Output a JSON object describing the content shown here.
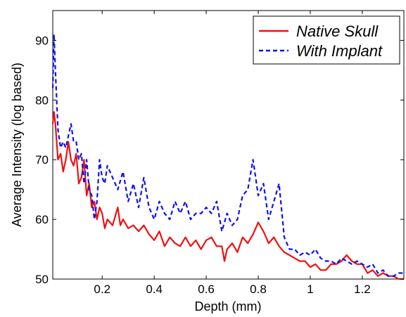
{
  "chart_data": {
    "type": "line",
    "title": "",
    "xlabel": "Depth (mm)",
    "ylabel": "Average Intensity (log based)",
    "xlim": [
      0.01,
      1.36
    ],
    "ylim": [
      50,
      95
    ],
    "xticks": [
      0.2,
      0.4,
      0.6,
      0.8,
      1,
      1.2
    ],
    "xtick_labels": [
      "0.2",
      "0.4",
      "0.6",
      "0.8",
      "1",
      "1.2"
    ],
    "yticks": [
      50,
      60,
      70,
      80,
      90
    ],
    "ytick_labels": [
      "50",
      "60",
      "70",
      "80",
      "90"
    ],
    "grid": false,
    "legend_position": "top-right",
    "colors": {
      "native": "#ee1111",
      "implant": "#1111ee",
      "axis": "#000000"
    },
    "series": [
      {
        "name": "Native Skull",
        "style": "solid",
        "x": [
          0.01,
          0.015,
          0.02,
          0.03,
          0.04,
          0.05,
          0.06,
          0.07,
          0.08,
          0.09,
          0.1,
          0.11,
          0.12,
          0.13,
          0.14,
          0.15,
          0.16,
          0.17,
          0.18,
          0.19,
          0.2,
          0.21,
          0.22,
          0.24,
          0.26,
          0.27,
          0.28,
          0.3,
          0.32,
          0.34,
          0.36,
          0.38,
          0.4,
          0.42,
          0.44,
          0.46,
          0.48,
          0.5,
          0.52,
          0.54,
          0.56,
          0.58,
          0.6,
          0.62,
          0.64,
          0.66,
          0.67,
          0.68,
          0.7,
          0.72,
          0.74,
          0.76,
          0.78,
          0.8,
          0.82,
          0.84,
          0.86,
          0.88,
          0.9,
          0.92,
          0.94,
          0.96,
          0.98,
          1.0,
          1.02,
          1.04,
          1.06,
          1.08,
          1.1,
          1.12,
          1.14,
          1.16,
          1.18,
          1.2,
          1.22,
          1.24,
          1.26,
          1.28,
          1.3,
          1.32,
          1.34,
          1.36
        ],
        "y": [
          76,
          78,
          76,
          70,
          71,
          68,
          70,
          73,
          70,
          69,
          71,
          66,
          67,
          70,
          64,
          66,
          62,
          63,
          60,
          62,
          61,
          58.5,
          60,
          59,
          62,
          59,
          60,
          58.5,
          59,
          58,
          59,
          57.5,
          56.5,
          58,
          55.5,
          57,
          56,
          55.5,
          57,
          55.5,
          56.5,
          55,
          56.5,
          57,
          55.5,
          55.5,
          53,
          55,
          56,
          54.5,
          57,
          56,
          57.5,
          59.5,
          58,
          56,
          57,
          55.5,
          54.5,
          54,
          53.5,
          53,
          53,
          52,
          52.5,
          51.5,
          51.5,
          52.5,
          52.5,
          53,
          54,
          53,
          52.5,
          52.5,
          51,
          51.5,
          50.5,
          51,
          50.5,
          50.5,
          50,
          50
        ]
      },
      {
        "name": "With Implant",
        "style": "dashed",
        "x": [
          0.01,
          0.015,
          0.02,
          0.03,
          0.04,
          0.05,
          0.06,
          0.07,
          0.08,
          0.09,
          0.1,
          0.11,
          0.12,
          0.13,
          0.14,
          0.15,
          0.16,
          0.17,
          0.18,
          0.19,
          0.2,
          0.21,
          0.22,
          0.24,
          0.26,
          0.28,
          0.3,
          0.32,
          0.34,
          0.36,
          0.38,
          0.4,
          0.42,
          0.44,
          0.46,
          0.48,
          0.5,
          0.52,
          0.54,
          0.56,
          0.58,
          0.6,
          0.62,
          0.64,
          0.66,
          0.68,
          0.7,
          0.72,
          0.74,
          0.76,
          0.78,
          0.8,
          0.82,
          0.84,
          0.86,
          0.88,
          0.9,
          0.92,
          0.94,
          0.96,
          0.98,
          1.0,
          1.02,
          1.04,
          1.06,
          1.08,
          1.1,
          1.12,
          1.14,
          1.16,
          1.18,
          1.2,
          1.22,
          1.24,
          1.26,
          1.28,
          1.3,
          1.32,
          1.34,
          1.36
        ],
        "y": [
          82,
          91,
          85,
          75,
          72,
          73,
          72,
          74,
          76,
          73,
          73,
          70,
          71,
          66,
          70,
          65,
          64,
          60,
          63,
          70,
          67,
          66,
          69,
          67,
          65,
          68,
          63,
          66,
          62,
          67,
          62,
          60,
          63,
          61,
          60,
          63,
          61,
          63,
          60,
          61,
          61,
          62,
          61,
          63,
          58,
          61,
          59,
          60,
          64,
          65,
          70,
          64,
          66,
          60,
          63,
          66,
          57,
          55,
          55,
          54,
          54.5,
          54,
          55,
          53.5,
          53,
          53,
          52.5,
          53.5,
          53,
          52.5,
          53,
          52.5,
          52,
          52.5,
          51,
          51.5,
          50.5,
          50.5,
          51,
          51
        ]
      }
    ]
  }
}
